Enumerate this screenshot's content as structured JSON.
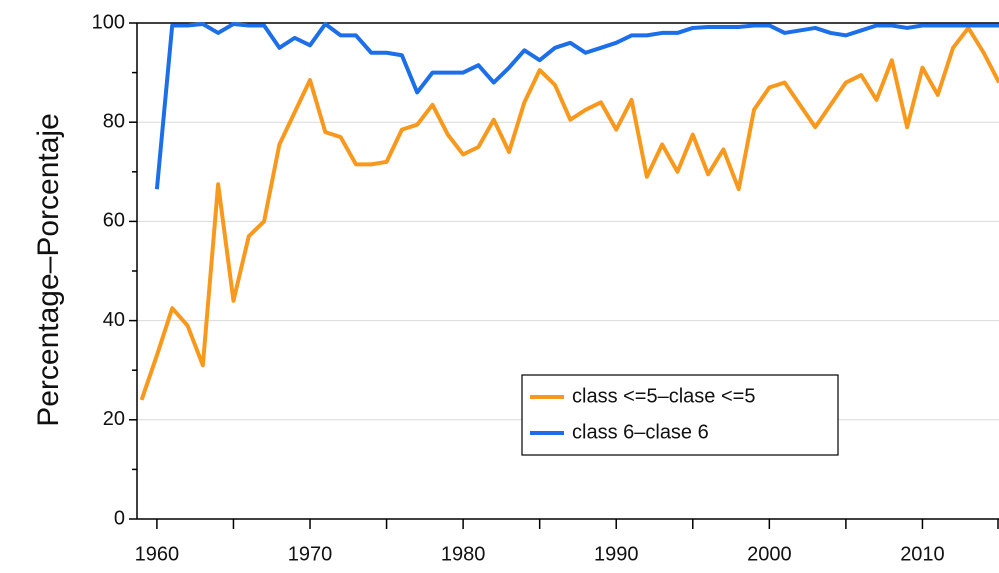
{
  "chart_data": {
    "type": "line",
    "ylabel": "Percentage–Porcentaje",
    "x": [
      1959,
      1960,
      1961,
      1962,
      1963,
      1964,
      1965,
      1966,
      1967,
      1968,
      1969,
      1970,
      1971,
      1972,
      1973,
      1974,
      1975,
      1976,
      1977,
      1978,
      1979,
      1980,
      1981,
      1982,
      1983,
      1984,
      1985,
      1986,
      1987,
      1988,
      1989,
      1990,
      1991,
      1992,
      1993,
      1994,
      1995,
      1996,
      1997,
      1998,
      1999,
      2000,
      2001,
      2002,
      2003,
      2004,
      2005,
      2006,
      2007,
      2008,
      2009,
      2010,
      2011,
      2012,
      2013,
      2014,
      2015
    ],
    "series": [
      {
        "name": "class <=5–clase <=5",
        "color": "#f8991d",
        "values": [
          24,
          33,
          42.5,
          39,
          31,
          67.5,
          44,
          57,
          60,
          75.5,
          82,
          88.5,
          78,
          77,
          71.5,
          71.5,
          72,
          78.5,
          79.5,
          83.5,
          77.5,
          73.5,
          75,
          80.5,
          74,
          84,
          90.5,
          87.5,
          80.5,
          82.5,
          84,
          78.5,
          84.5,
          69,
          75.5,
          70,
          77.5,
          69.5,
          74.5,
          66.5,
          82.5,
          87,
          88,
          83.5,
          79,
          83.5,
          88,
          89.5,
          84.5,
          92.5,
          79,
          91,
          85.5,
          95,
          99,
          94,
          88
        ]
      },
      {
        "name": "class 6–clase 6",
        "color": "#1c6fe8",
        "values": [
          null,
          66.5,
          99.5,
          99.5,
          99.8,
          98,
          99.8,
          99.5,
          99.5,
          95,
          97,
          95.5,
          99.8,
          97.5,
          97.5,
          94,
          94,
          93.5,
          86,
          90,
          90,
          90,
          91.5,
          88,
          91,
          94.5,
          92.5,
          95,
          96,
          94,
          95,
          96,
          97.5,
          97.5,
          98,
          98,
          99,
          99.2,
          99.2,
          99.2,
          99.5,
          99.5,
          98,
          98.5,
          99,
          98,
          97.5,
          98.5,
          99.5,
          99.5,
          99,
          99.5,
          99.5,
          99.5,
          99.5,
          99.5,
          99.5
        ]
      }
    ],
    "xlim": [
      1958.7,
      2015
    ],
    "ylim": [
      0,
      100
    ],
    "xticks": [
      1960,
      1970,
      1980,
      1990,
      2000,
      2010
    ],
    "xminor": [
      1965,
      1975,
      1985,
      1995,
      2005,
      2015
    ],
    "yticks": [
      0,
      20,
      40,
      60,
      80,
      100
    ],
    "yminor": [
      10,
      30,
      50,
      70,
      90
    ],
    "grid": true,
    "legend": "lower right"
  }
}
